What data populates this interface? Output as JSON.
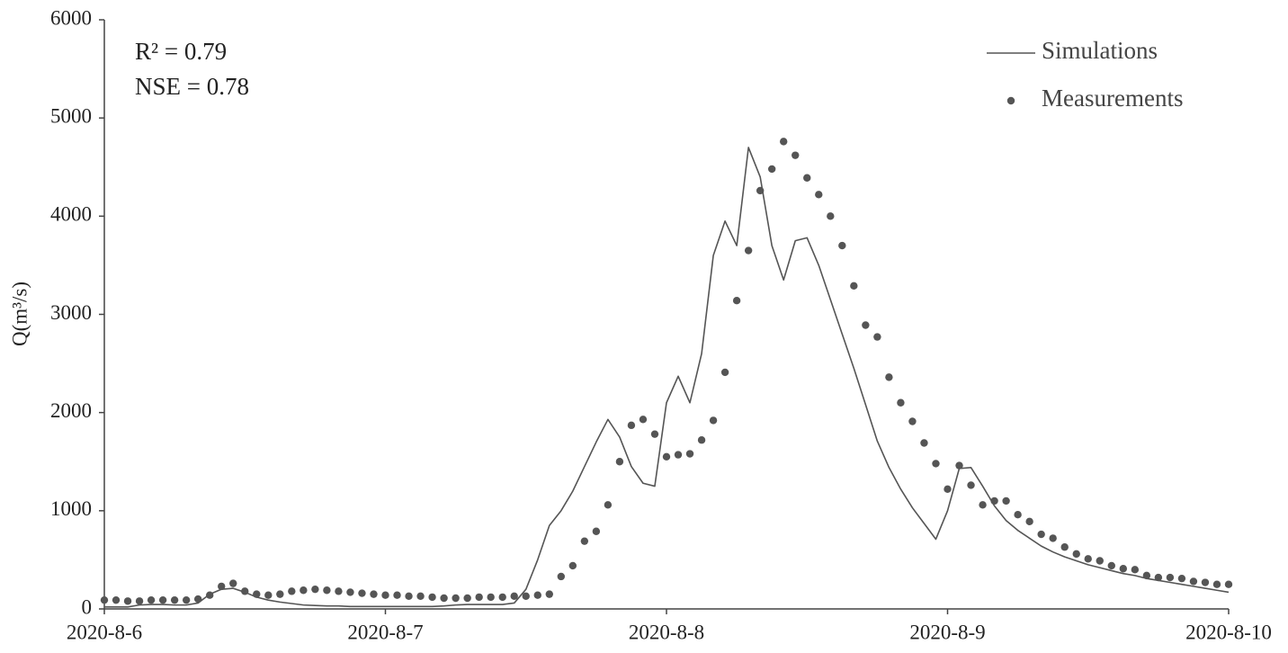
{
  "chart_data": {
    "type": "line",
    "annotations": [
      "R² = 0.79",
      "NSE = 0.78"
    ],
    "y_label": "Q(m³/s)",
    "categories": [
      "2020-8-6",
      null,
      null,
      null,
      null,
      null,
      null,
      null,
      null,
      null,
      null,
      null,
      null,
      null,
      null,
      null,
      null,
      null,
      null,
      null,
      null,
      null,
      null,
      null,
      "2020-8-7",
      null,
      null,
      null,
      null,
      null,
      null,
      null,
      null,
      null,
      null,
      null,
      null,
      null,
      null,
      null,
      null,
      null,
      null,
      null,
      null,
      null,
      null,
      null,
      "2020-8-8",
      null,
      null,
      null,
      null,
      null,
      null,
      null,
      null,
      null,
      null,
      null,
      null,
      null,
      null,
      null,
      null,
      null,
      null,
      null,
      null,
      null,
      null,
      null,
      "2020-8-9",
      null,
      null,
      null,
      null,
      null,
      null,
      null,
      null,
      null,
      null,
      null,
      null,
      null,
      null,
      null,
      null,
      null,
      null,
      null,
      null,
      null,
      null,
      null,
      "2020-8-10"
    ],
    "series": [
      {
        "name": "Simulations",
        "mode": "line",
        "color": "#555555",
        "values": [
          20,
          20,
          20,
          40,
          45,
          45,
          40,
          40,
          60,
          150,
          200,
          210,
          170,
          120,
          90,
          70,
          55,
          40,
          35,
          30,
          30,
          25,
          25,
          25,
          25,
          25,
          25,
          25,
          25,
          30,
          40,
          45,
          45,
          45,
          45,
          60,
          200,
          500,
          850,
          1000,
          1200,
          1450,
          1700,
          1930,
          1750,
          1450,
          1280,
          1250,
          2100,
          2370,
          2100,
          2600,
          3600,
          3950,
          3700,
          4700,
          4400,
          3700,
          3350,
          3750,
          3780,
          3500,
          3150,
          2800,
          2450,
          2080,
          1710,
          1440,
          1220,
          1030,
          870,
          710,
          1000,
          1430,
          1440,
          1250,
          1050,
          900,
          800,
          720,
          640,
          580,
          530,
          490,
          450,
          420,
          390,
          360,
          340,
          310,
          290,
          270,
          250,
          230,
          210,
          190,
          170
        ]
      },
      {
        "name": "Measurements",
        "mode": "markers",
        "color": "#555555",
        "values": [
          90,
          90,
          80,
          80,
          90,
          90,
          90,
          90,
          100,
          140,
          230,
          260,
          180,
          150,
          140,
          150,
          180,
          190,
          200,
          190,
          180,
          170,
          160,
          150,
          140,
          140,
          130,
          130,
          120,
          110,
          110,
          110,
          120,
          120,
          120,
          130,
          130,
          140,
          150,
          330,
          440,
          690,
          790,
          1060,
          1500,
          1870,
          1930,
          1780,
          1550,
          1570,
          1580,
          1720,
          1920,
          2410,
          3140,
          3650,
          4260,
          4480,
          4760,
          4620,
          4390,
          4220,
          4000,
          3700,
          3290,
          2890,
          2770,
          2360,
          2100,
          1910,
          1690,
          1480,
          1220,
          1460,
          1260,
          1060,
          1100,
          1100,
          960,
          890,
          760,
          720,
          630,
          560,
          510,
          490,
          440,
          410,
          400,
          340,
          320,
          320,
          310,
          280,
          270,
          250,
          250
        ]
      }
    ],
    "ylim": [
      0,
      6000
    ],
    "yticks": [
      0,
      1000,
      2000,
      3000,
      4000,
      5000,
      6000
    ],
    "grid": false,
    "legend": "upper right"
  }
}
